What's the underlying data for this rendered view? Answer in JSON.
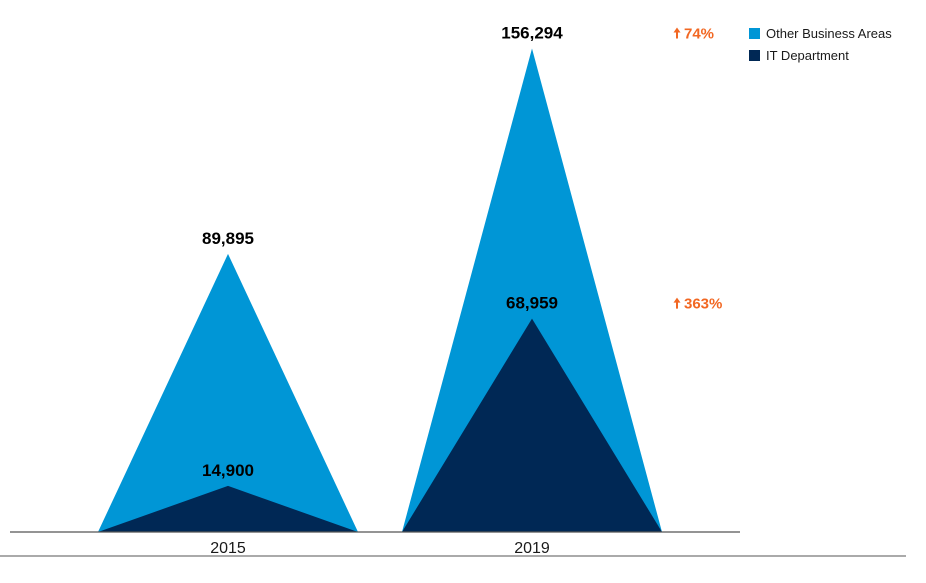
{
  "chart_data": {
    "type": "area",
    "categories": [
      "2015",
      "2019"
    ],
    "series": [
      {
        "name": "Other Business Areas",
        "color": "#0096d6",
        "values": [
          89895,
          156294
        ],
        "labels": [
          "89,895",
          "156,294"
        ]
      },
      {
        "name": "IT Department",
        "color": "#002855",
        "values": [
          14900,
          68959
        ],
        "labels": [
          "14,900",
          "68,959"
        ]
      }
    ],
    "changes": [
      {
        "label": "74%",
        "series": "Other Business Areas",
        "direction": "up"
      },
      {
        "label": "363%",
        "series": "IT Department",
        "direction": "up"
      }
    ],
    "change_color": "#f26722",
    "ylim": [
      0,
      160000
    ],
    "legend_position": "top-right",
    "grid": false
  }
}
